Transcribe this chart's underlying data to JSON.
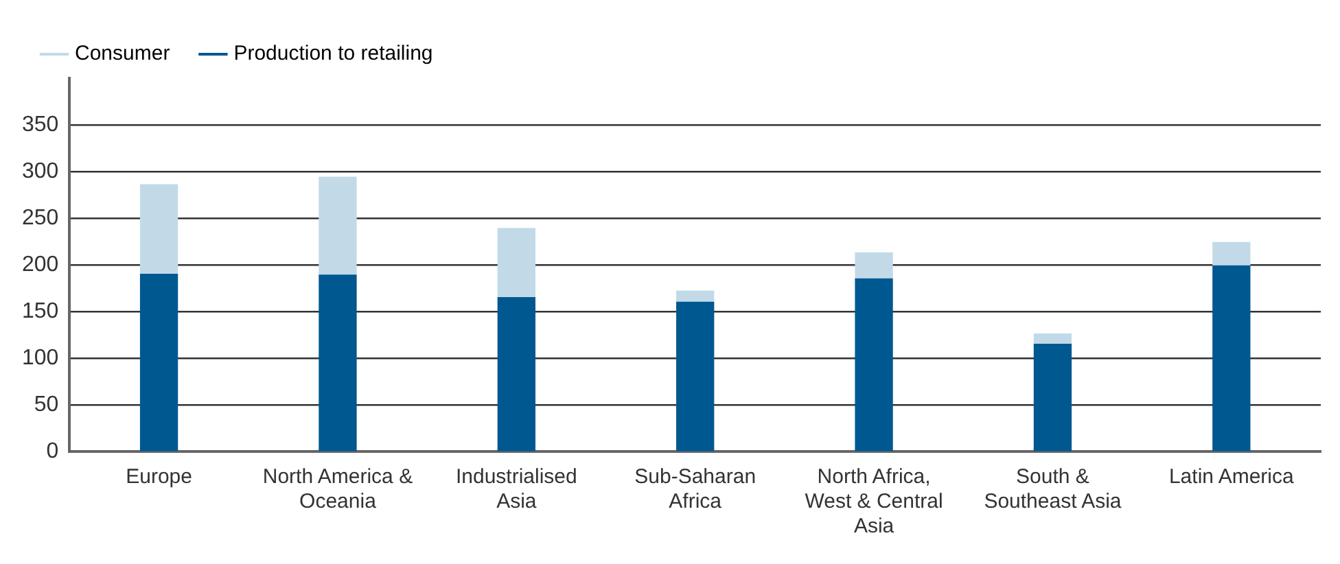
{
  "chart_data": {
    "type": "bar",
    "stacked": true,
    "categories": [
      "Europe",
      "North America & Oceania",
      "Industrialised Asia",
      "Sub-Saharan Africa",
      "North Africa, West & Central Asia",
      "South & Southeast Asia",
      "Latin America"
    ],
    "series": [
      {
        "name": "Production to retailing",
        "color": "#005891",
        "values": [
          190,
          189,
          165,
          160,
          185,
          115,
          199
        ]
      },
      {
        "name": "Consumer",
        "color": "#c2dae8",
        "values": [
          96,
          105,
          74,
          12,
          28,
          11,
          25
        ]
      }
    ],
    "ylim": [
      0,
      400
    ],
    "yticks": [
      0,
      50,
      100,
      150,
      200,
      250,
      300,
      350
    ],
    "grid": "y",
    "legend": "top left"
  }
}
